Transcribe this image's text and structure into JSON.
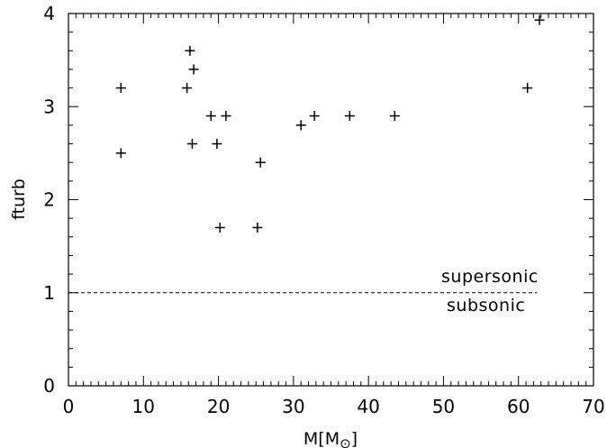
{
  "chart_data": {
    "type": "scatter",
    "xlabel": "M[M",
    "xlabel_symbol": "⊙",
    "xlabel_close": "]",
    "ylabel": "fturb",
    "xlim": [
      0,
      70
    ],
    "ylim": [
      0,
      4
    ],
    "xticks": [
      0,
      10,
      20,
      30,
      40,
      50,
      60,
      70
    ],
    "xtick_labels": [
      "0",
      "10",
      "20",
      "30",
      "40",
      "50",
      "60",
      "70"
    ],
    "yticks": [
      0,
      1,
      2,
      3,
      4
    ],
    "ytick_labels": [
      "0",
      "1",
      "2",
      "3",
      "4"
    ],
    "grid": false,
    "marker": "plus",
    "series": [
      {
        "points": [
          {
            "x": 7.0,
            "y": 3.2
          },
          {
            "x": 7.0,
            "y": 2.5
          },
          {
            "x": 15.8,
            "y": 3.2
          },
          {
            "x": 16.2,
            "y": 3.6
          },
          {
            "x": 16.7,
            "y": 3.4
          },
          {
            "x": 16.5,
            "y": 2.6
          },
          {
            "x": 19.0,
            "y": 2.9
          },
          {
            "x": 19.8,
            "y": 2.6
          },
          {
            "x": 20.2,
            "y": 1.7
          },
          {
            "x": 21.0,
            "y": 2.9
          },
          {
            "x": 25.2,
            "y": 1.7
          },
          {
            "x": 25.6,
            "y": 2.4
          },
          {
            "x": 31.0,
            "y": 2.8
          },
          {
            "x": 32.8,
            "y": 2.9
          },
          {
            "x": 37.5,
            "y": 2.9
          },
          {
            "x": 43.5,
            "y": 2.9
          },
          {
            "x": 61.2,
            "y": 3.2
          },
          {
            "x": 62.8,
            "y": 3.93
          }
        ]
      }
    ],
    "reference_line": {
      "y": 1.0,
      "x_range": [
        0,
        62.5
      ],
      "style": "dashed"
    },
    "annotations": {
      "above": "supersonic",
      "below": "subsonic"
    }
  }
}
